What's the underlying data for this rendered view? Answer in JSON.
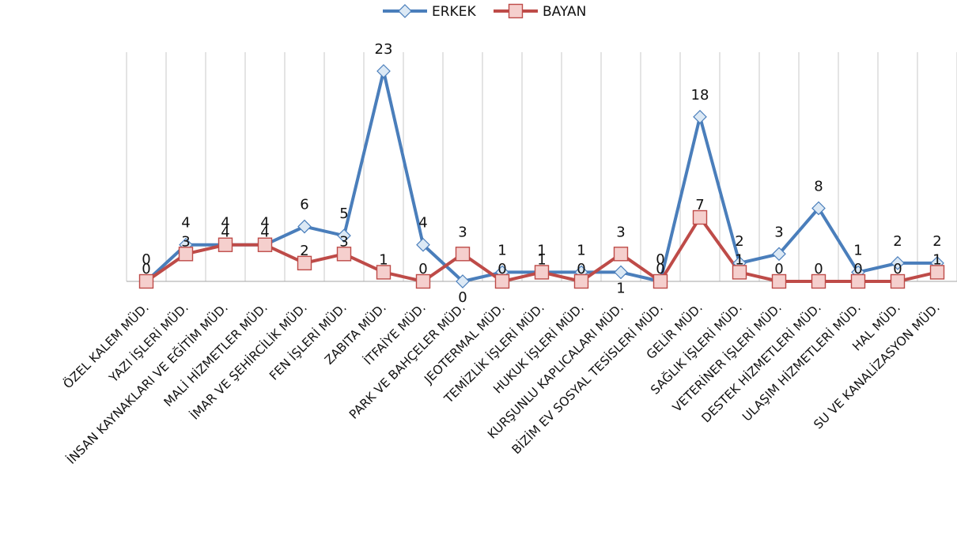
{
  "chart_data": {
    "type": "line",
    "categories": [
      "ÖZEL KALEM MÜD.",
      "YAZI İŞLERİ MÜD.",
      "İNSAN KAYNAKLARI VE EĞİTİM MÜD.",
      "MALİ HİZMETLER MÜD.",
      "İMAR VE ŞEHİRCİLİK MÜD.",
      "FEN İŞLERİ MÜD.",
      "ZABITA MÜD.",
      "İTFAİYE MÜD.",
      "PARK VE BAHÇELER MÜD.",
      "JEOTERMAL MÜD.",
      "TEMİZLİK İŞLERİ MÜD.",
      "HUKUK İŞLERİ MÜD.",
      "KURŞUNLU KAPLICALARI MÜD.",
      "BİZİM EV SOSYAL TESİSLERİ MÜD.",
      "GELİR MÜD.",
      "SAĞLIK İŞLERİ MÜD.",
      "VETERİNER İŞLERİ MÜD.",
      "DESTEK HİZMETLERİ MÜD.",
      "ULAŞIM HİZMETLERİ MÜD.",
      "HAL MÜD.",
      "SU VE KANALİZASYON MÜD."
    ],
    "series": [
      {
        "name": "ERKEK",
        "values": [
          0,
          4,
          4,
          4,
          6,
          5,
          23,
          4,
          0,
          1,
          1,
          1,
          1,
          0,
          18,
          2,
          3,
          8,
          1,
          2,
          2
        ],
        "color": "#4a7ebb",
        "marker": "diamond",
        "marker_fill": "#dce9f5"
      },
      {
        "name": "BAYAN",
        "values": [
          0,
          3,
          4,
          4,
          2,
          3,
          1,
          0,
          3,
          0,
          1,
          0,
          3,
          0,
          7,
          1,
          0,
          0,
          0,
          0,
          1
        ],
        "color": "#be4b48",
        "marker": "square",
        "marker_fill": "#f5cfcd"
      }
    ],
    "ylim": [
      0,
      23
    ],
    "grid": "vertical",
    "legend_position": "top-center"
  }
}
